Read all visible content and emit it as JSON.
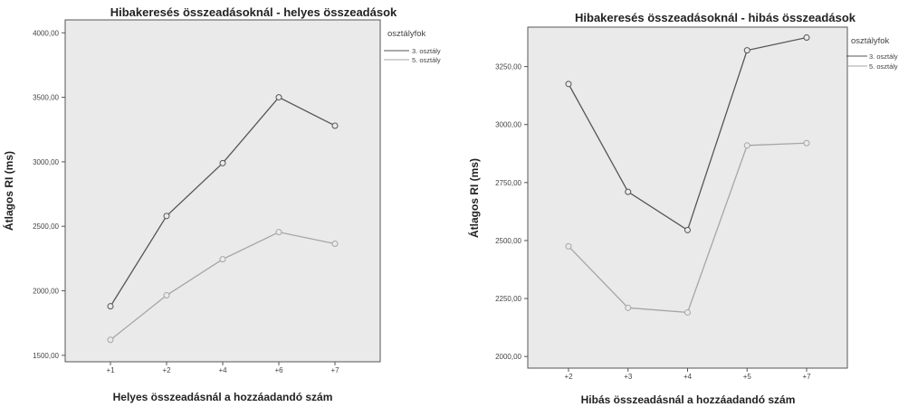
{
  "legend": {
    "title": "osztályfok",
    "entries": [
      "3. osztály",
      "5. osztály"
    ]
  },
  "colors": {
    "series_3": "#555555",
    "series_5": "#a6a6a6",
    "plot_bg": "#eaeaea"
  },
  "chart_data": [
    {
      "type": "line",
      "title": "Hibakeresés összeadásoknál - helyes összeadások",
      "xlabel": "Helyes összeadásnál a hozzáadandó szám",
      "ylabel": "Átlagos RI (ms)",
      "categories": [
        "+1",
        "+2",
        "+4",
        "+6",
        "+7"
      ],
      "yticks": [
        "1500,00",
        "2000,00",
        "2500,00",
        "3000,00",
        "3500,00",
        "4000,00"
      ],
      "ylim": [
        1450,
        4100
      ],
      "series": [
        {
          "name": "3. osztály",
          "values": [
            1880,
            2580,
            2990,
            3500,
            3280
          ]
        },
        {
          "name": "5. osztály",
          "values": [
            1620,
            1965,
            2245,
            2455,
            2365
          ]
        }
      ],
      "grid": false,
      "legend_position": "top-right, outside"
    },
    {
      "type": "line",
      "title": "Hibakeresés összeadásoknál - hibás összeadások",
      "xlabel": "Hibás összeadásnál a hozzáadandó szám",
      "ylabel": "Átlagos RI (ms)",
      "categories": [
        "+2",
        "+3",
        "+4",
        "+5",
        "+7"
      ],
      "yticks": [
        "2000,00",
        "2250,00",
        "2500,00",
        "2750,00",
        "3000,00",
        "3250,00"
      ],
      "ylim": [
        1950,
        3420
      ],
      "series": [
        {
          "name": "3. osztály",
          "values": [
            3175,
            2710,
            2545,
            3320,
            3375
          ]
        },
        {
          "name": "5. osztály",
          "values": [
            2475,
            2210,
            2190,
            2910,
            2920
          ]
        }
      ],
      "grid": false,
      "legend_position": "top-right, outside"
    }
  ]
}
